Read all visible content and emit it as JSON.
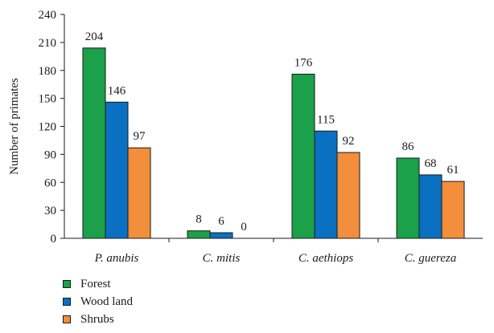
{
  "chart_data": {
    "type": "bar",
    "ylabel": "Number of primates",
    "xlabel": "",
    "ylim": [
      0,
      240
    ],
    "yticks": [
      0,
      30,
      60,
      90,
      120,
      150,
      180,
      210,
      240
    ],
    "categories": [
      "P. anubis",
      "C. mitis",
      "C. aethiops",
      "C. guereza"
    ],
    "series": [
      {
        "name": "Forest",
        "color": "#1aa14a",
        "values": [
          204,
          8,
          176,
          86
        ]
      },
      {
        "name": "Wood land",
        "color": "#0a70c2",
        "values": [
          146,
          6,
          115,
          68
        ]
      },
      {
        "name": "Shrubs",
        "color": "#f28e3c",
        "values": [
          97,
          0,
          92,
          61
        ]
      }
    ],
    "legend_position": "bottom-left",
    "grid": false
  }
}
